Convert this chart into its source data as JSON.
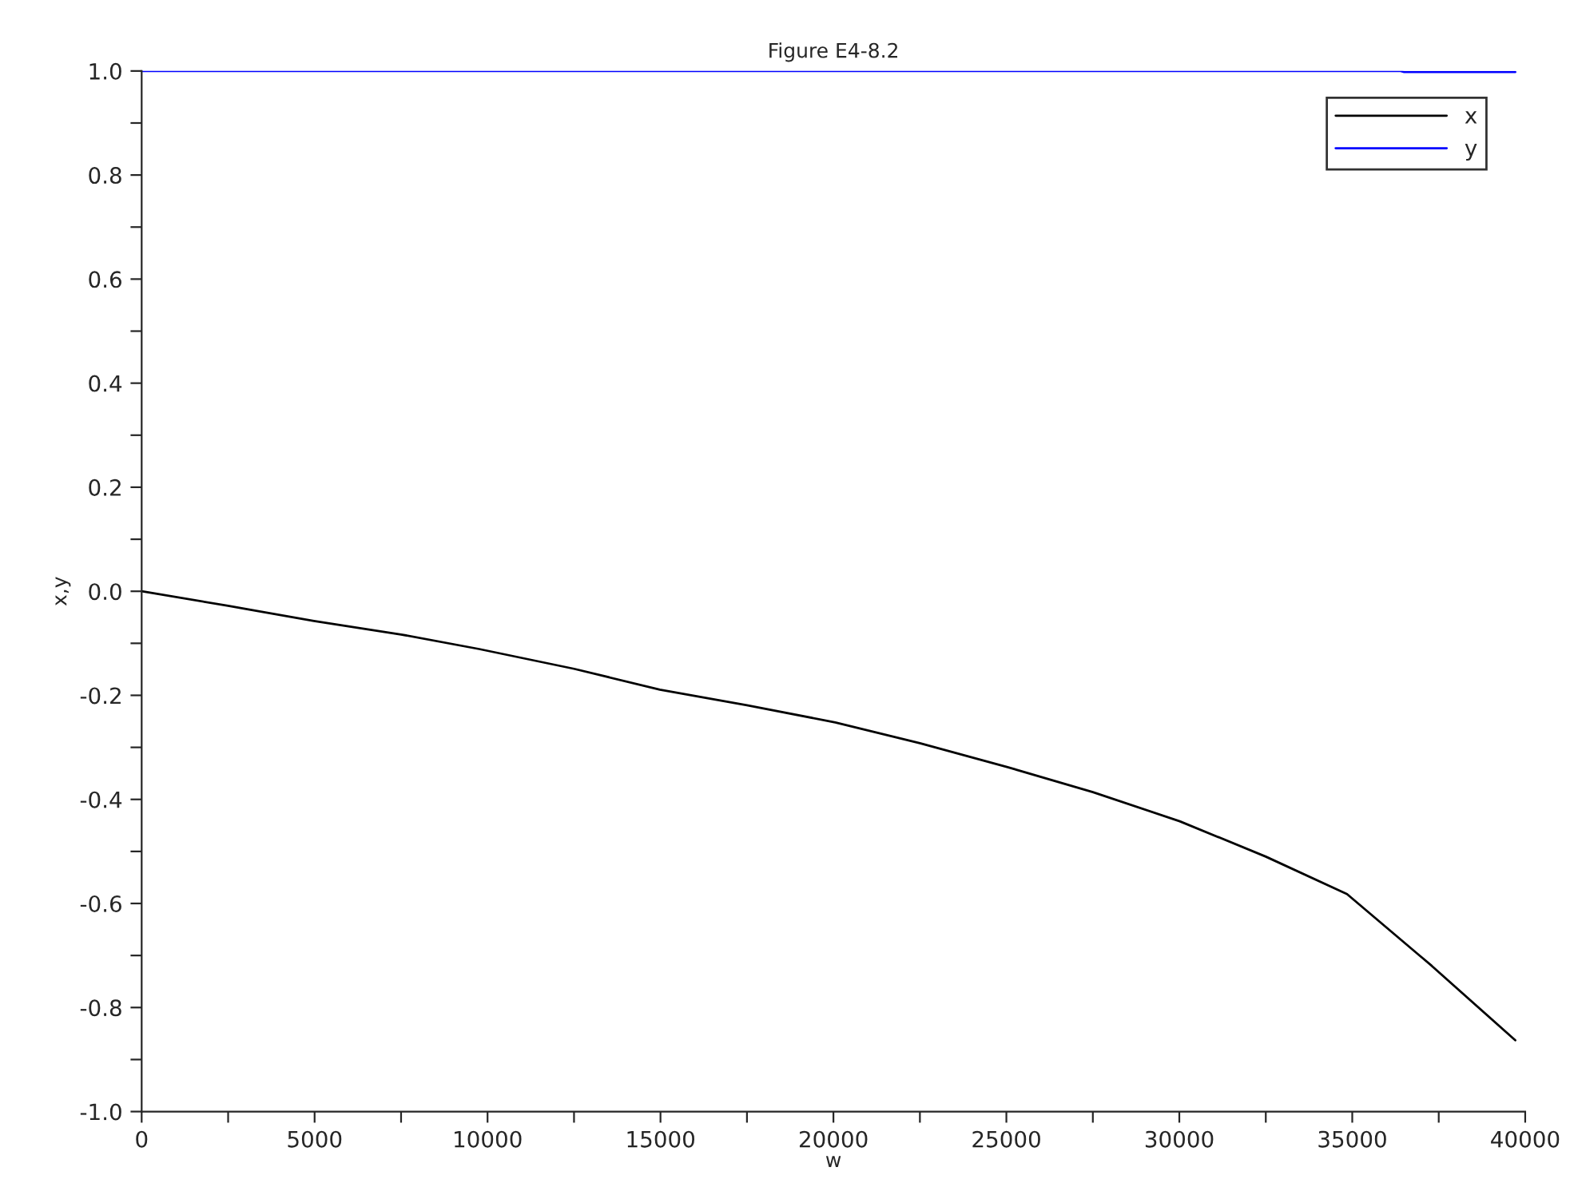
{
  "chart_data": {
    "type": "line",
    "title": "Figure E4-8.2",
    "xlabel": "w",
    "ylabel": "x,y",
    "series": [
      {
        "name": "x",
        "color": "#000000",
        "x": [
          0,
          2500,
          4980,
          7500,
          9757,
          12500,
          14983,
          17500,
          20052,
          22500,
          25036,
          27500,
          30012,
          32500,
          34848,
          37300,
          39713
        ],
        "values": [
          0,
          -0.028,
          -0.057,
          -0.083,
          -0.111,
          -0.149,
          -0.189,
          -0.219,
          -0.252,
          -0.292,
          -0.338,
          -0.386,
          -0.442,
          -0.51,
          -0.582,
          -0.72,
          -0.863
        ]
      },
      {
        "name": "y",
        "color": "#0000ff",
        "x": [
          0,
          36400,
          36500,
          39713
        ],
        "values": [
          1,
          1,
          0.998,
          0.998
        ]
      }
    ],
    "xlim": [
      0,
      40000
    ],
    "ylim": [
      -1,
      1
    ],
    "xticks": [
      0,
      {
        "value": 2500,
        "label": null
      },
      5000,
      {
        "value": 7500,
        "label": null
      },
      10000,
      {
        "value": 12500,
        "label": null
      },
      15000,
      {
        "value": 17500,
        "label": null
      },
      20000,
      {
        "value": 22500,
        "label": null
      },
      25000,
      {
        "value": 27500,
        "label": null
      },
      30000,
      {
        "value": 32500,
        "label": null
      },
      35000,
      {
        "value": 37500,
        "label": null
      },
      40000
    ],
    "yticks": [
      {
        "value": -1,
        "label": "-1.0"
      },
      {
        "value": -0.9,
        "label": null
      },
      {
        "value": -0.8,
        "label": "-0.8"
      },
      {
        "value": -0.7,
        "label": null
      },
      {
        "value": -0.6,
        "label": "-0.6"
      },
      {
        "value": -0.5,
        "label": null
      },
      {
        "value": -0.4,
        "label": "-0.4"
      },
      {
        "value": -0.3,
        "label": null
      },
      {
        "value": -0.2,
        "label": "-0.2"
      },
      {
        "value": -0.1,
        "label": null
      },
      {
        "value": 0,
        "label": "0.0"
      },
      {
        "value": 0.1,
        "label": null
      },
      {
        "value": 0.2,
        "label": "0.2"
      },
      {
        "value": 0.3,
        "label": null
      },
      {
        "value": 0.4,
        "label": "0.4"
      },
      {
        "value": 0.5,
        "label": null
      },
      {
        "value": 0.6,
        "label": "0.6"
      },
      {
        "value": 0.7,
        "label": null
      },
      {
        "value": 0.8,
        "label": "0.8"
      },
      {
        "value": 0.9,
        "label": null
      },
      {
        "value": 1,
        "label": "1.0"
      }
    ],
    "grid": false,
    "legend": "top right",
    "marker": "none",
    "line_style": "solid"
  }
}
